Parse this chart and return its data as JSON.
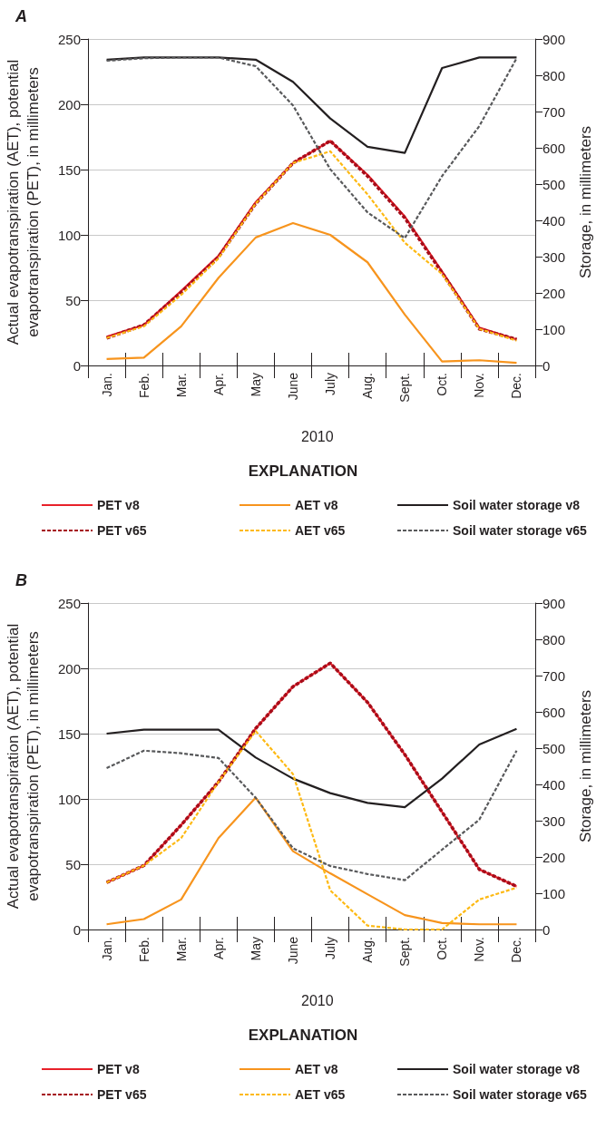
{
  "chart_data": [
    {
      "type": "line",
      "title": "A",
      "xlabel": "2010",
      "ylabel": "Actual evapotranspiration (AET), potential evapotranspiration (PET), in millimeters",
      "y2label": "Storage, in millimeters",
      "legend_title": "EXPLANATION",
      "categories": [
        "Jan.",
        "Feb.",
        "Mar.",
        "Apr.",
        "May",
        "June",
        "July",
        "Aug.",
        "Sept.",
        "Oct.",
        "Nov.",
        "Dec."
      ],
      "ylim": [
        0,
        250
      ],
      "yticks": [
        0,
        50,
        100,
        150,
        200,
        250
      ],
      "y2lim": [
        0,
        900
      ],
      "y2ticks": [
        0,
        100,
        200,
        300,
        400,
        500,
        600,
        700,
        800,
        900
      ],
      "grid": "y",
      "legend": "bottom",
      "marker": "none",
      "series": [
        {
          "name": "PET v8",
          "color": "#e8212a",
          "line_style": "solid",
          "values": [
            22,
            31,
            57,
            84,
            125,
            155,
            172,
            146,
            114,
            72,
            29,
            20
          ]
        },
        {
          "name": "AET v8",
          "color": "#f7941d",
          "line_style": "solid",
          "values": [
            5,
            6,
            30,
            67,
            98,
            109,
            100,
            79,
            39,
            3,
            4,
            2
          ]
        },
        {
          "name": "Soil water storage v8",
          "color": "#231f20",
          "line_style": "solid",
          "axis": "y2",
          "values": [
            843,
            849,
            849,
            849,
            843,
            782,
            681,
            603,
            586,
            820,
            849,
            849
          ]
        },
        {
          "name": "PET v65",
          "color": "#a50d1a",
          "line_style": "dashed",
          "values": [
            21,
            31,
            56,
            83,
            124,
            155,
            172,
            145,
            113,
            71,
            28,
            20
          ]
        },
        {
          "name": "AET v65",
          "color": "#fdb913",
          "line_style": "dashed",
          "values": [
            21,
            30,
            54,
            82,
            124,
            155,
            164,
            131,
            94,
            70,
            28,
            19
          ]
        },
        {
          "name": "Soil water storage v65",
          "color": "#58595b",
          "line_style": "dashed",
          "axis": "y2",
          "values": [
            840,
            847,
            849,
            849,
            825,
            717,
            541,
            422,
            351,
            522,
            660,
            847
          ]
        }
      ]
    },
    {
      "type": "line",
      "title": "B",
      "xlabel": "2010",
      "ylabel": "Actual evapotranspiration (AET), potential evapotranspiration (PET), in millimeters",
      "y2label": "Storage, in millimeters",
      "legend_title": "EXPLANATION",
      "categories": [
        "Jan.",
        "Feb.",
        "Mar.",
        "Apr.",
        "May",
        "June",
        "July",
        "Aug.",
        "Sept.",
        "Oct.",
        "Nov.",
        "Dec."
      ],
      "ylim": [
        0,
        250
      ],
      "yticks": [
        0,
        50,
        100,
        150,
        200,
        250
      ],
      "y2lim": [
        0,
        900
      ],
      "y2ticks": [
        0,
        100,
        200,
        300,
        400,
        500,
        600,
        700,
        800,
        900
      ],
      "grid": "y",
      "legend": "bottom",
      "marker": "none",
      "series": [
        {
          "name": "PET v8",
          "color": "#e8212a",
          "line_style": "solid",
          "values": [
            36,
            49,
            80,
            113,
            154,
            186,
            204,
            174,
            134,
            90,
            46,
            33
          ]
        },
        {
          "name": "AET v8",
          "color": "#f7941d",
          "line_style": "solid",
          "values": [
            4,
            8,
            23,
            70,
            101,
            60,
            43,
            27,
            11,
            5,
            4,
            4
          ]
        },
        {
          "name": "Soil water storage v8",
          "color": "#231f20",
          "line_style": "solid",
          "axis": "y2",
          "values": [
            540,
            551,
            551,
            551,
            474,
            416,
            376,
            349,
            337,
            416,
            510,
            553
          ]
        },
        {
          "name": "PET v65",
          "color": "#a50d1a",
          "line_style": "dashed",
          "values": [
            36,
            49,
            80,
            113,
            154,
            186,
            204,
            174,
            134,
            90,
            46,
            33
          ]
        },
        {
          "name": "AET v65",
          "color": "#fdb913",
          "line_style": "dashed",
          "values": [
            36,
            49,
            70,
            113,
            152,
            119,
            30,
            3,
            0,
            0,
            23,
            32
          ]
        },
        {
          "name": "Soil water storage v65",
          "color": "#58595b",
          "line_style": "dashed",
          "axis": "y2",
          "values": [
            445,
            493,
            486,
            473,
            363,
            224,
            175,
            153,
            136,
            220,
            303,
            493
          ]
        }
      ]
    }
  ]
}
